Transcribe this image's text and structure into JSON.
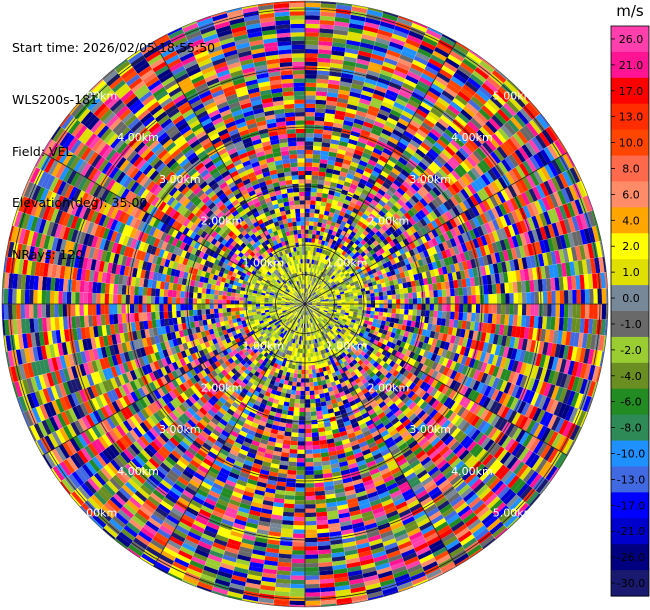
{
  "header": {
    "start_time": "Start time: 2026/02/05 18:55:50",
    "instrument": "WLS200s-181",
    "field": "Field: VEL",
    "elevation": "Elevation(deg): 35.00",
    "nrays": "NRays: 120"
  },
  "chart_data": {
    "type": "heatmap",
    "projection": "polar (PPI)",
    "field": "VEL",
    "units": "m/s",
    "rays": 120,
    "range_rings": [
      "1.00km",
      "2.00km",
      "3.00km",
      "4.00km",
      "5.00km"
    ],
    "colorbar": {
      "label": "m/s",
      "ticks": [
        "26.0",
        "21.0",
        "17.0",
        "13.0",
        "10.0",
        "8.0",
        "6.0",
        "4.0",
        "2.0",
        "1.0",
        "0.0",
        "-1.0",
        "-2.0",
        "-4.0",
        "-6.0",
        "-8.0",
        "-10.0",
        "-13.0",
        "-17.0",
        "-21.0",
        "-26.0",
        "-30.0"
      ],
      "colors": [
        "#ff3fae",
        "#ff1493",
        "#ff0000",
        "#ff2d00",
        "#ff4500",
        "#ff6a4d",
        "#ff8c69",
        "#ffa500",
        "#ffff00",
        "#e0e000",
        "#778899",
        "#696969",
        "#9acd32",
        "#6b8e23",
        "#228b22",
        "#2e8b57",
        "#1e90ff",
        "#4169e1",
        "#0000ff",
        "#0000cd",
        "#000080",
        "#191970"
      ]
    }
  }
}
